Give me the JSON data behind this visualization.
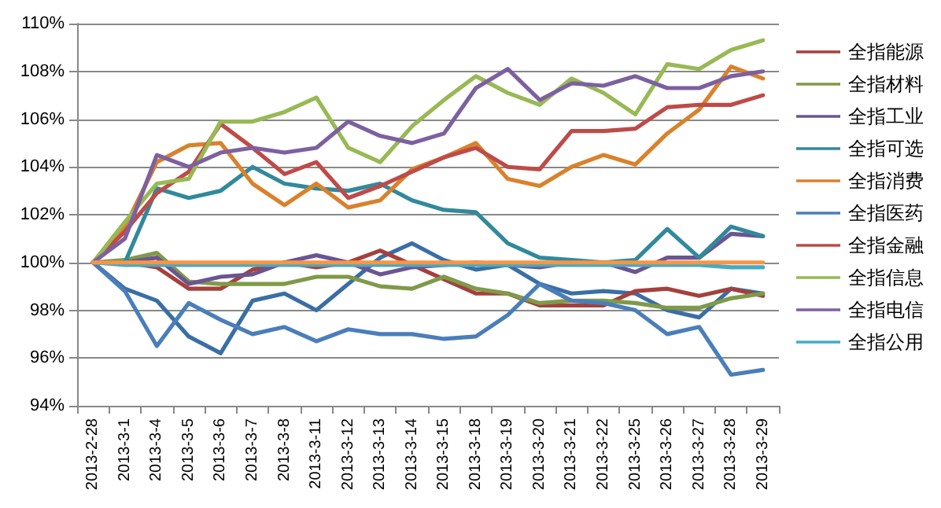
{
  "chart_data": {
    "type": "line",
    "categories": [
      "2013-2-28",
      "2013-3-1",
      "2013-3-4",
      "2013-3-5",
      "2013-3-6",
      "2013-3-7",
      "2013-3-8",
      "2013-3-11",
      "2013-3-12",
      "2013-3-13",
      "2013-3-14",
      "2013-3-15",
      "2013-3-18",
      "2013-3-19",
      "2013-3-20",
      "2013-3-21",
      "2013-3-22",
      "2013-3-25",
      "2013-3-26",
      "2013-3-27",
      "2013-3-28",
      "2013-3-29"
    ],
    "series": [
      {
        "color": "#3a6ea5",
        "values": [
          100,
          98.9,
          98.4,
          96.9,
          96.2,
          98.4,
          98.7,
          98.0,
          99.1,
          100.2,
          100.8,
          100.1,
          99.7,
          99.9,
          99.1,
          98.7,
          98.8,
          98.7,
          98.0,
          97.7,
          98.9,
          98.7
        ]
      },
      {
        "name": "全指能源",
        "color": "#a5403c",
        "values": [
          100,
          100.0,
          99.8,
          98.9,
          98.9,
          99.7,
          100.0,
          99.8,
          100.0,
          100.5,
          99.9,
          99.3,
          98.7,
          98.7,
          98.2,
          98.2,
          98.2,
          98.8,
          98.9,
          98.6,
          98.9,
          98.6
        ]
      },
      {
        "name": "全指材料",
        "color": "#7f9a48",
        "values": [
          100,
          100.1,
          100.4,
          99.2,
          99.1,
          99.1,
          99.1,
          99.4,
          99.4,
          99.0,
          98.9,
          99.4,
          98.9,
          98.7,
          98.3,
          98.4,
          98.4,
          98.3,
          98.1,
          98.1,
          98.5,
          98.7
        ]
      },
      {
        "name": "全指工业",
        "color": "#6a5592",
        "values": [
          100,
          100.0,
          100.2,
          99.1,
          99.4,
          99.5,
          100.0,
          100.3,
          100.0,
          99.5,
          99.8,
          99.9,
          100.0,
          99.9,
          99.8,
          100.0,
          100.0,
          99.6,
          100.2,
          100.2,
          101.2,
          101.1
        ]
      },
      {
        "name": "全指可选",
        "color": "#31899c",
        "values": [
          100,
          100,
          103.1,
          102.7,
          103.0,
          104.0,
          103.3,
          103.1,
          103.0,
          103.3,
          102.6,
          102.2,
          102.1,
          100.8,
          100.2,
          100.1,
          100.0,
          100.1,
          101.4,
          100.2,
          101.5,
          101.1
        ]
      },
      {
        "name": "全指消费",
        "color": "#d9822b",
        "values": [
          100,
          101.5,
          104.2,
          104.9,
          105.0,
          103.3,
          102.4,
          103.3,
          102.3,
          102.6,
          103.9,
          104.4,
          105.0,
          103.5,
          103.2,
          104.0,
          104.5,
          104.1,
          105.4,
          106.4,
          108.2,
          107.7
        ]
      },
      {
        "name": "全指医药",
        "color": "#4a7ebb",
        "values": [
          100,
          98.8,
          96.5,
          98.3,
          97.6,
          97.0,
          97.3,
          96.7,
          97.2,
          97.0,
          97.0,
          96.8,
          96.9,
          97.8,
          99.1,
          98.4,
          98.3,
          98.0,
          97.0,
          97.3,
          95.3,
          95.5
        ]
      },
      {
        "name": "全指金融",
        "color": "#be4b48",
        "values": [
          100,
          101.3,
          102.9,
          103.8,
          105.8,
          104.8,
          103.7,
          104.2,
          102.7,
          103.2,
          103.8,
          104.4,
          104.8,
          104.0,
          103.9,
          105.5,
          105.5,
          105.6,
          106.5,
          106.6,
          106.6,
          107.0
        ]
      },
      {
        "name": "全指信息",
        "color": "#98b954",
        "values": [
          100,
          101.7,
          103.3,
          103.5,
          105.9,
          105.9,
          106.3,
          106.9,
          104.8,
          104.2,
          105.7,
          106.8,
          107.8,
          107.1,
          106.6,
          107.7,
          107.1,
          106.2,
          108.3,
          108.1,
          108.9,
          109.3
        ]
      },
      {
        "name": "全指电信",
        "color": "#7d60a0",
        "values": [
          100,
          101.0,
          104.5,
          104.0,
          104.6,
          104.8,
          104.6,
          104.8,
          105.9,
          105.3,
          105.0,
          105.4,
          107.3,
          108.1,
          106.8,
          107.5,
          107.4,
          107.8,
          107.3,
          107.3,
          107.8,
          108.0
        ]
      },
      {
        "name": "全指公用",
        "color": "#46aac5",
        "values": [
          100,
          99.9,
          99.9,
          99.9,
          99.9,
          99.9,
          99.9,
          99.9,
          99.9,
          99.9,
          99.9,
          99.9,
          99.9,
          99.9,
          99.9,
          99.9,
          99.9,
          99.9,
          99.9,
          99.9,
          99.8,
          99.8
        ]
      },
      {
        "color": "#f79646",
        "values": [
          100,
          100,
          100,
          100,
          100,
          100,
          100,
          100,
          100,
          100,
          100,
          100,
          100,
          100,
          100,
          100,
          100,
          100,
          100,
          100,
          100,
          100
        ]
      }
    ],
    "ylim": [
      94,
      110
    ],
    "yticks": [
      {
        "value": 94,
        "label": "94%"
      },
      {
        "value": 96,
        "label": "96%"
      },
      {
        "value": 98,
        "label": "98%"
      },
      {
        "value": 100,
        "label": "100%"
      },
      {
        "value": 102,
        "label": "102%"
      },
      {
        "value": 104,
        "label": "104%"
      },
      {
        "value": 106,
        "label": "106%"
      },
      {
        "value": 108,
        "label": "108%"
      },
      {
        "value": 110,
        "label": "110%"
      }
    ],
    "grid": "y",
    "legend": "right",
    "marker": "none",
    "line_style": "solid"
  }
}
